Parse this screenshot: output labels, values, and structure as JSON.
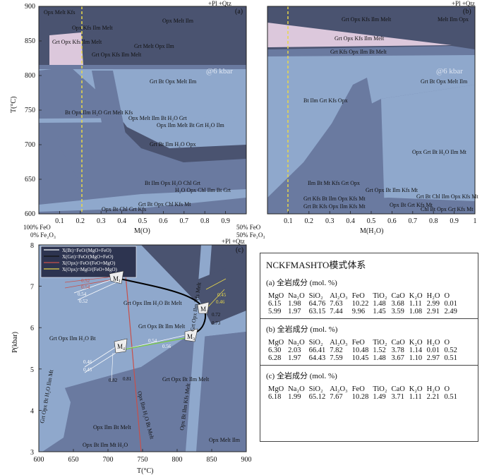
{
  "colors": {
    "dark": "#4a5370",
    "mid": "#6a7aa0",
    "light": "#8fa8cc",
    "pink": "#dcc8dc",
    "yellow": "#e8d84a",
    "green": "#7ac84a",
    "red": "#c8504a",
    "white": "#ffffff"
  },
  "panel_a": {
    "tag": "(a)",
    "top_label": "+Pl +Qtz",
    "pressure": "@6 kbar",
    "yaxis_label": "T(°C)",
    "xaxis_label": "M(O)",
    "y_ticks": [
      "900",
      "850",
      "800",
      "750",
      "700",
      "650",
      "600"
    ],
    "x_ticks": [
      "0.1",
      "0.2",
      "0.3",
      "0.4",
      "0.5",
      "0.6",
      "0.7",
      "0.8",
      "0.9"
    ],
    "x_left": [
      "100% FeO",
      "0% Fe₂O₃"
    ],
    "x_right": [
      "50% FeO",
      "50% Fe₂O₃"
    ],
    "fields": [
      "Opx Melt Kfs",
      "Opx Kfs Ilm Melt",
      "Opx Melt Ilm",
      "Grt Opx Kfs Ilm Melt",
      "Grt Melt Opx Ilm",
      "Grt Opx Kfs Ilm Melt",
      "Bt Opx Melt Grt Kfs",
      "Bt Opx Kfs Ilm Bt Melt",
      "Grt Bt Opx Melt Ilm",
      "Bt Opx Ilm H₂O Grt Melt Kfs",
      "Opx Melt Ilm Bt H₂O Grt",
      "Opx Ilm Melt Bt Grt H₂O Ilm",
      "Grt Bt Opx H₂O Ilm Kfs",
      "Grt Bt Ilm H₂O Opx",
      "Grt Bt H₂O Opx Ilm Kfs",
      "H₂O Grt Opx Chl Bt Ilm Kfs",
      "Bt Ilm Opx H₂O Chl Grt",
      "H₂O Opx Chl Ilm Bt Grt",
      "Opx Grt Bt Chl Kfs H₂O Opx Ilm Bt Grt",
      "Grt Bt Opx Chl Kfs Mt",
      "Bt Opx Chl Ilm Grt Kfs",
      "Opx Bt Chl Grt Kfs",
      "Grt Bt H₂O Kfs Opx",
      "Opx Grt Bt Ilm Chl Mt",
      "Opx Grt Bt Ilm Kfs Mt"
    ]
  },
  "panel_b": {
    "tag": "(b)",
    "top_label": "+Pl +Qtz",
    "pressure": "@6 kbar",
    "xaxis_label": "M(H₂O)",
    "x_ticks": [
      "0.1",
      "0.2",
      "0.3",
      "0.4",
      "0.5",
      "0.6",
      "0.7",
      "0.8",
      "0.9",
      "1"
    ],
    "fields": [
      "Grt Opx Kfs Ilm Melt",
      "Melt Ilm Opx",
      "Grt Opx Kfs Ilm Melt",
      "Grt Kfs Opx Ilm Bt Melt",
      "Grt Bt Opx Melt Ilm",
      "Bt Ilm Grt Kfs Opx",
      "Grt Ilm Bt Opx Melt",
      "Bt Grt Ilm Opx Mt",
      "Opx Grt Bt H₂O Ilm Mt",
      "Ilm Bt Mt Kfs Grt Opx",
      "Grt Opx Bt Ilm Kfs Mt",
      "Grt Kfs Bt Ilm Opx Kfs Mt",
      "Grt Bt Chl Ilm Opx Kfs Mt",
      "Grt Bt Kfs Opx Ilm Kfs Mt",
      "Opx Bt Grt Kfs Mt",
      "Chl Bt Opx Grt Kfs Mt"
    ]
  },
  "panel_c": {
    "tag": "(c)",
    "top_label": "+Pl +Qtz",
    "yaxis_label": "P(kbar)",
    "xaxis_label": "T(°C)",
    "y_ticks": [
      "8",
      "7",
      "6",
      "5",
      "4",
      "3"
    ],
    "x_ticks": [
      "600",
      "650",
      "700",
      "750",
      "800",
      "850",
      "900"
    ],
    "legend": [
      "X(Bt)=FeO/(MgO+FeO)",
      "X(Grt)=FeO/(MgO+FeO)",
      "X(Opx)=FeO/(FeO+MgO)",
      "X(Opx)=MgO/(FeO+MgO)"
    ],
    "points": [
      "M₁",
      "M₂",
      "M₃",
      "M₄"
    ],
    "iso_labels": [
      "0.52",
      "0.54",
      "0.45",
      "0.46",
      "0.72",
      "0.73",
      "0.47",
      "0.48",
      "0.54",
      "0.56",
      "0.82",
      "0.81",
      "0.46",
      "0.45"
    ],
    "fields": [
      "Grt Opx Ilm Melt",
      "Grt Opx Ilm H₂O Bt Melt",
      "Grt Opx Bt Ilm Melt",
      "Grt Opx Ilm H₂O Bt",
      "Grt Opx Bt Ilm Melt",
      "Grt Opx Ilm Kfs Melt",
      "Opx Bt Ilm Kfs Melt",
      "Grt Opx Bt H₂O Ilm Mt",
      "Opx Ilm H₂O Bt Melt",
      "Opx Ilm Bt Melt",
      "Opx Ilm Bt H₂O",
      "Opx Bt Ilm Mt H₂O",
      "Opx Melt Ilm",
      "Opx Bt Ilm Kfs Melt"
    ]
  },
  "table": {
    "title": "NCKFMASHTO模式体系",
    "sections": [
      {
        "subtitle": "(a) 全岩成分 (mol. %)",
        "header": [
          "MgO",
          "Na₂O",
          "SiO₂",
          "Al₂O₃",
          "FeO",
          "TiO₂",
          "CaO",
          "K₂O",
          "H₂O",
          "O"
        ],
        "rows": [
          [
            "6.15",
            "1.98",
            "64.76",
            "7.63",
            "10.22",
            "1.48",
            "3.68",
            "1.11",
            "2.99",
            "0.01"
          ],
          [
            "5.99",
            "1.97",
            "63.15",
            "7.44",
            "9.96",
            "1.45",
            "3.59",
            "1.08",
            "2.91",
            "2.49"
          ]
        ]
      },
      {
        "subtitle": "(b) 全岩成分 (mol. %)",
        "header": [
          "MgO",
          "Na₂O",
          "SiO₂",
          "Al₂O₃",
          "FeO",
          "TiO₂",
          "CaO",
          "K₂O",
          "H₂O",
          "O"
        ],
        "rows": [
          [
            "6.30",
            "2.03",
            "66.41",
            "7.82",
            "10.48",
            "1.52",
            "3.78",
            "1.14",
            "0.01",
            "0.52"
          ],
          [
            "6.28",
            "1.97",
            "64.43",
            "7.59",
            "10.45",
            "1.48",
            "3.67",
            "1.10",
            "2.97",
            "0.51"
          ]
        ]
      },
      {
        "subtitle": "(c) 全岩成分 (mol. %)",
        "header": [
          "MgO",
          "Na₂O",
          "SiO₂",
          "Al₂O₃",
          "FeO",
          "TiO₂",
          "CaO",
          "K₂O",
          "H₂O",
          "O"
        ],
        "rows": [
          [
            "6.18",
            "1.99",
            "65.12",
            "7.67",
            "10.28",
            "1.49",
            "3.71",
            "1.11",
            "2.21",
            "0.51"
          ]
        ]
      }
    ]
  }
}
